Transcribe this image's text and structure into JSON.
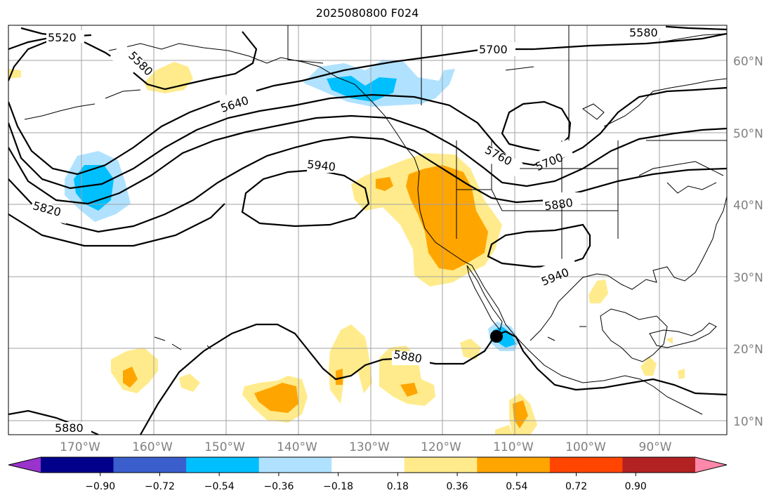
{
  "title": "2025080800 F024",
  "map": {
    "lat_labels": [
      "60°N",
      "50°N",
      "40°N",
      "30°N",
      "20°N",
      "10°N"
    ],
    "lon_labels": [
      "170°W",
      "160°W",
      "150°W",
      "140°W",
      "130°W",
      "120°W",
      "110°W",
      "100°W",
      "90°W"
    ],
    "contour_labels": [
      "5520",
      "5580",
      "5580",
      "5640",
      "5700",
      "5700",
      "5760",
      "5820",
      "5880",
      "5880",
      "5880",
      "5940",
      "5940"
    ],
    "gridlines": true,
    "contour_color": "#000000",
    "marker": "storm-center-dot"
  },
  "colorbar": {
    "ticks": [
      "−0.90",
      "−0.72",
      "−0.54",
      "−0.36",
      "−0.18",
      "0.18",
      "0.36",
      "0.54",
      "0.72",
      "0.90"
    ],
    "colors": [
      "#9933cc",
      "#00008b",
      "#3a5fcd",
      "#00bfff",
      "#b0e2ff",
      "#ffffff",
      "#ffeb8b",
      "#ffa500",
      "#ff4500",
      "#b22222",
      "#ff88aa"
    ]
  }
}
